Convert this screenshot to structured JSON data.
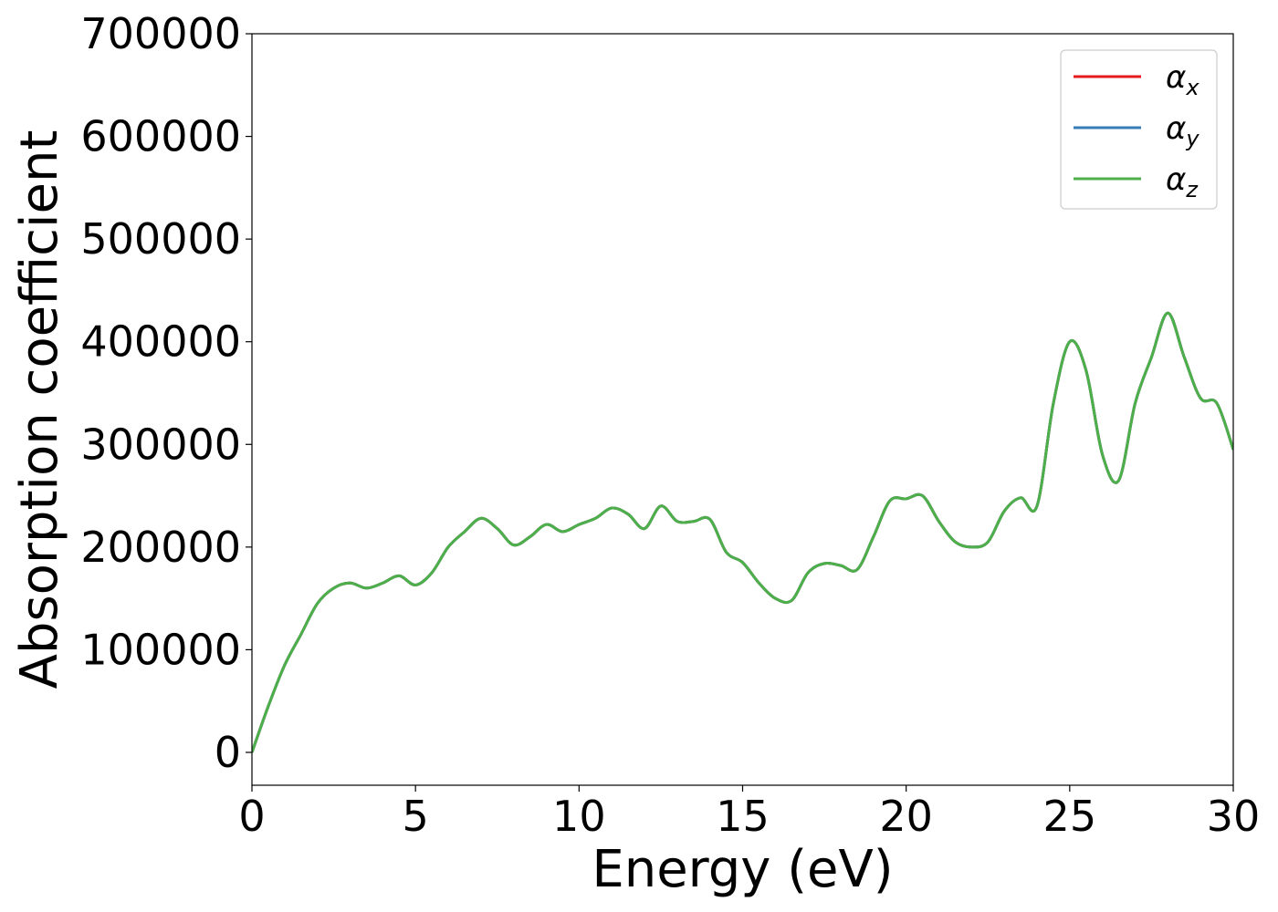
{
  "chart_data": {
    "type": "line",
    "xlabel": "Energy (eV)",
    "ylabel": "Absorption coefficient",
    "xlim": [
      0,
      30
    ],
    "ylim": [
      -32000,
      700000
    ],
    "xticks": [
      0,
      5,
      10,
      15,
      20,
      25,
      30
    ],
    "yticks": [
      0,
      100000,
      200000,
      300000,
      400000,
      500000,
      600000,
      700000
    ],
    "grid": false,
    "legend_position": "top-right",
    "x": [
      0,
      0.5,
      1,
      1.5,
      2,
      2.5,
      3,
      3.5,
      4,
      4.5,
      5,
      5.5,
      6,
      6.5,
      7,
      7.5,
      8,
      8.5,
      9,
      9.5,
      10,
      10.5,
      11,
      11.5,
      12,
      12.5,
      13,
      13.5,
      14,
      14.5,
      15,
      15.5,
      16,
      16.5,
      17,
      17.5,
      18,
      18.5,
      19,
      19.5,
      20,
      20.5,
      21,
      21.5,
      22,
      22.5,
      23,
      23.5,
      24,
      24.5,
      25,
      25.5,
      26,
      26.5,
      27,
      27.5,
      28,
      28.5,
      29,
      29.5,
      30
    ],
    "series": [
      {
        "name": "α_x",
        "symbol": "α",
        "subscript": "x",
        "color": "#e41a1c",
        "values": [
          0,
          45000,
          85000,
          115000,
          145000,
          160000,
          165000,
          160000,
          165000,
          172000,
          163000,
          175000,
          200000,
          215000,
          228000,
          218000,
          202000,
          210000,
          222000,
          215000,
          222000,
          228000,
          238000,
          232000,
          218000,
          240000,
          225000,
          225000,
          227000,
          195000,
          185000,
          165000,
          150000,
          148000,
          175000,
          184000,
          182000,
          178000,
          210000,
          245000,
          247000,
          250000,
          225000,
          205000,
          200000,
          205000,
          235000,
          248000,
          240000,
          340000,
          400000,
          372000,
          290000,
          265000,
          340000,
          385000,
          428000,
          385000,
          345000,
          340000,
          295000
        ]
      },
      {
        "name": "α_y",
        "symbol": "α",
        "subscript": "y",
        "color": "#377eb8",
        "values": [
          0,
          45000,
          85000,
          115000,
          145000,
          160000,
          165000,
          160000,
          165000,
          172000,
          163000,
          175000,
          200000,
          215000,
          228000,
          218000,
          202000,
          210000,
          222000,
          215000,
          222000,
          228000,
          238000,
          232000,
          218000,
          240000,
          225000,
          225000,
          227000,
          195000,
          185000,
          165000,
          150000,
          148000,
          175000,
          184000,
          182000,
          178000,
          210000,
          245000,
          247000,
          250000,
          225000,
          205000,
          200000,
          205000,
          235000,
          248000,
          240000,
          340000,
          400000,
          372000,
          290000,
          265000,
          340000,
          385000,
          428000,
          385000,
          345000,
          340000,
          295000
        ]
      },
      {
        "name": "α_z",
        "symbol": "α",
        "subscript": "z",
        "color": "#4daf4a",
        "values": [
          0,
          45000,
          85000,
          115000,
          145000,
          160000,
          165000,
          160000,
          165000,
          172000,
          163000,
          175000,
          200000,
          215000,
          228000,
          218000,
          202000,
          210000,
          222000,
          215000,
          222000,
          228000,
          238000,
          232000,
          218000,
          240000,
          225000,
          225000,
          227000,
          195000,
          185000,
          165000,
          150000,
          148000,
          175000,
          184000,
          182000,
          178000,
          210000,
          245000,
          247000,
          250000,
          225000,
          205000,
          200000,
          205000,
          235000,
          248000,
          240000,
          340000,
          400000,
          372000,
          290000,
          265000,
          340000,
          385000,
          428000,
          385000,
          345000,
          340000,
          295000
        ]
      }
    ]
  }
}
